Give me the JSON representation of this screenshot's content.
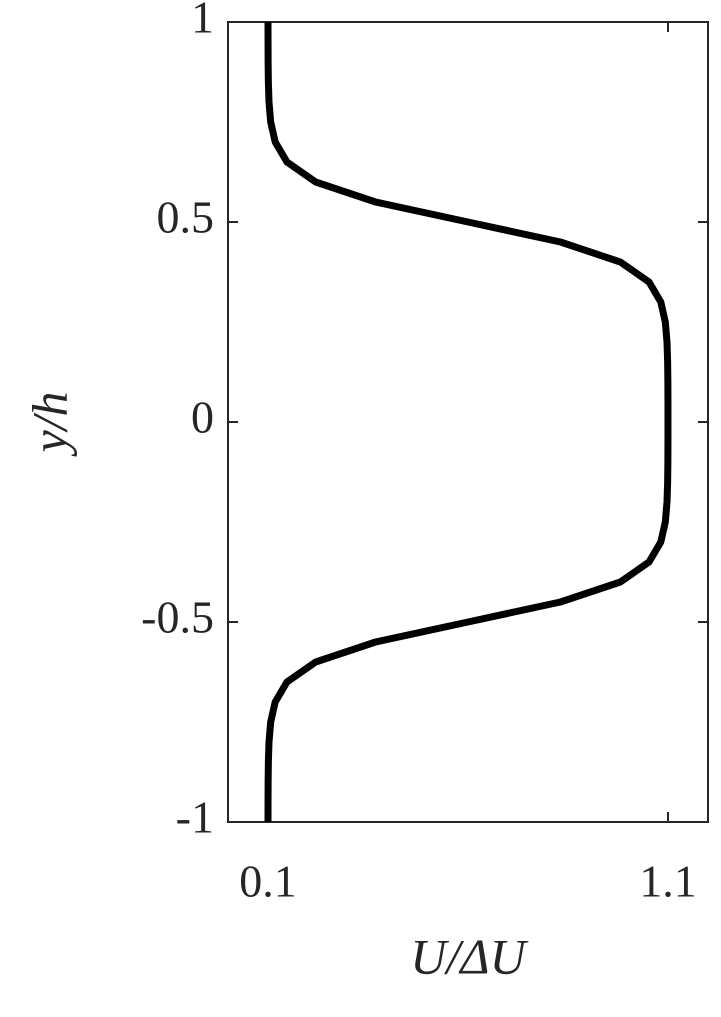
{
  "chart_data": {
    "type": "line",
    "xlabel": "U/ΔU",
    "ylabel": "y/h",
    "series": [
      {
        "color": "#000000",
        "x": [
          0.1,
          0.1001,
          0.1003,
          0.1009,
          0.1025,
          0.1067,
          0.118,
          0.1474,
          0.2192,
          0.3689,
          0.6,
          0.8311,
          0.9808,
          1.0526,
          1.082,
          1.0933,
          1.0975,
          1.0991,
          1.0997,
          1.0999,
          1.0999,
          1.0999,
          1.0997,
          1.0991,
          1.0975,
          1.0933,
          1.082,
          1.0526,
          0.9808,
          0.8311,
          0.6,
          0.3689,
          0.2192,
          0.1474,
          0.118,
          0.1067,
          0.1025,
          0.1009,
          0.1003,
          0.1001,
          0.1
        ],
        "y": [
          -1,
          -0.95,
          -0.9,
          -0.85,
          -0.8,
          -0.75,
          -0.7,
          -0.65,
          -0.6,
          -0.55,
          -0.5,
          -0.45,
          -0.4,
          -0.35,
          -0.3,
          -0.25,
          -0.2,
          -0.15,
          -0.1,
          -0.05,
          0,
          0.05,
          0.1,
          0.15,
          0.2,
          0.25,
          0.3,
          0.35,
          0.4,
          0.45,
          0.5,
          0.55,
          0.6,
          0.65,
          0.7,
          0.75,
          0.8,
          0.85,
          0.9,
          0.95,
          1
        ]
      }
    ],
    "xlim": [
      0,
      1.2
    ],
    "ylim": [
      -1,
      1
    ],
    "xticks": [
      0.1,
      1.1
    ],
    "yticks": [
      -1,
      -0.5,
      0,
      0.5,
      1
    ]
  }
}
